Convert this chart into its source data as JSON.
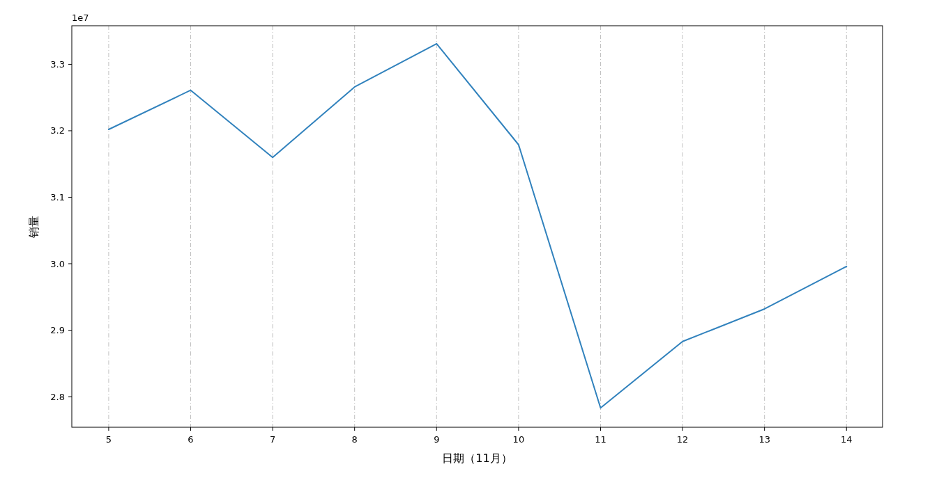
{
  "chart_data": {
    "type": "line",
    "xlabel": "日期（11月）",
    "ylabel": "销量",
    "annotations": [
      "1e7"
    ],
    "x": [
      5,
      6,
      7,
      8,
      9,
      10,
      11,
      12,
      13,
      14
    ],
    "series": [
      {
        "color": "#3182bd",
        "values": [
          3.202,
          3.261,
          3.16,
          3.266,
          3.331,
          3.179,
          2.783,
          2.883,
          2.932,
          2.996
        ]
      }
    ],
    "xlim": [
      4.55,
      14.44
    ],
    "xticks": [
      5,
      6,
      7,
      8,
      9,
      10,
      11,
      12,
      13,
      14
    ],
    "ylim": [
      2.754,
      3.358
    ],
    "yticks": [
      {
        "value": 2.8,
        "label": "2.8"
      },
      {
        "value": 2.9,
        "label": "2.9"
      },
      {
        "value": 3.0,
        "label": "3.0"
      },
      {
        "value": 3.1,
        "label": "3.1"
      },
      {
        "value": 3.2,
        "label": "3.2"
      },
      {
        "value": 3.3,
        "label": "3.3"
      }
    ],
    "grid": "x",
    "marker": "none",
    "line_style": "solid"
  }
}
